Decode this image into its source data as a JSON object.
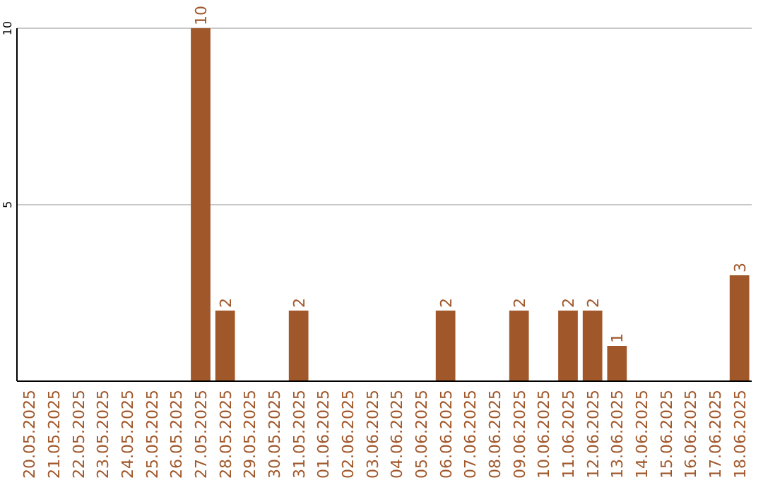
{
  "chart_data": {
    "type": "bar",
    "categories": [
      "20.05.2025",
      "21.05.2025",
      "22.05.2025",
      "23.05.2025",
      "24.05.2025",
      "25.05.2025",
      "26.05.2025",
      "27.05.2025",
      "28.05.2025",
      "29.05.2025",
      "30.05.2025",
      "31.05.2025",
      "01.06.2025",
      "02.06.2025",
      "03.06.2025",
      "04.06.2025",
      "05.06.2025",
      "06.06.2025",
      "07.06.2025",
      "08.06.2025",
      "09.06.2025",
      "10.06.2025",
      "11.06.2025",
      "12.06.2025",
      "13.06.2025",
      "14.06.2025",
      "15.06.2025",
      "16.06.2025",
      "17.06.2025",
      "18.06.2025"
    ],
    "values": [
      0,
      0,
      0,
      0,
      0,
      0,
      0,
      10,
      2,
      0,
      0,
      2,
      0,
      0,
      0,
      0,
      0,
      2,
      0,
      0,
      2,
      0,
      2,
      2,
      1,
      0,
      0,
      0,
      0,
      3
    ],
    "value_labels": [
      null,
      null,
      null,
      null,
      null,
      null,
      null,
      "10",
      "2",
      null,
      null,
      "2",
      null,
      null,
      null,
      null,
      null,
      "2",
      null,
      null,
      "2",
      null,
      "2",
      "2",
      "1",
      null,
      null,
      null,
      null,
      "3"
    ],
    "color": "#a0572a",
    "ylim": [
      0,
      10
    ],
    "yticks": [
      5,
      10
    ],
    "grid": "y"
  }
}
